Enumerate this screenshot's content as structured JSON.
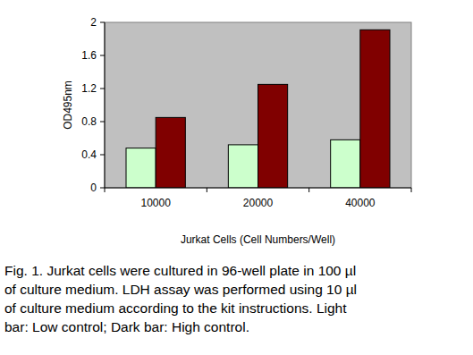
{
  "chart_data": {
    "type": "bar",
    "y_label": "OD495nm",
    "x_label": "Jurkat Cells (Cell Numbers/Well)",
    "caption": [
      "Fig. 1. Jurkat cells were cultured in 96-well plate in 100 µl",
      "of culture medium. LDH assay was performed using 10 µl",
      "of culture medium according to the kit instructions. Light",
      "bar: Low control; Dark bar: High control."
    ],
    "categories": [
      "10000",
      "20000",
      "40000"
    ],
    "series": [
      {
        "color": "#ccffcc",
        "values": [
          0.48,
          0.52,
          0.58
        ]
      },
      {
        "color": "#800000",
        "values": [
          0.85,
          1.25,
          1.91
        ]
      }
    ],
    "ylim": [
      0,
      2
    ],
    "yticks": [
      0,
      0.4,
      0.8,
      1.2,
      1.6,
      2
    ],
    "grid": false
  }
}
